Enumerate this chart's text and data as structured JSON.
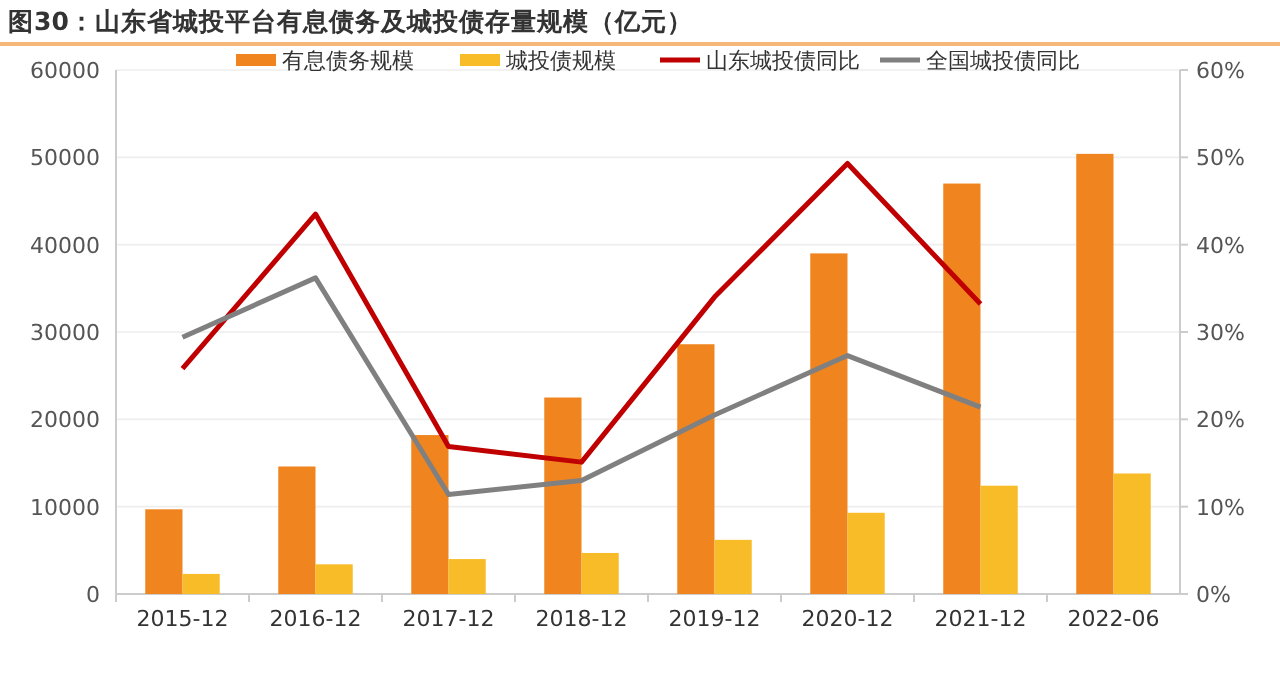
{
  "chart_data": {
    "type": "bar",
    "title": "图30：山东省城投平台有息债务及城投债存量规模（亿元）",
    "categories": [
      "2015-12",
      "2016-12",
      "2017-12",
      "2018-12",
      "2019-12",
      "2020-12",
      "2021-12",
      "2022-06"
    ],
    "series": [
      {
        "name": "有息债务规模",
        "color": "#f08520",
        "values": [
          9700,
          14600,
          18200,
          22500,
          28600,
          39000,
          47000,
          50400
        ]
      },
      {
        "name": "城投债规模",
        "color": "#f8bc28",
        "values": [
          2300,
          3400,
          4000,
          4700,
          6200,
          9300,
          12400,
          13800
        ]
      },
      {
        "name": "山东城投债同比",
        "type": "line",
        "axis": "y2",
        "color": "#c00000",
        "values": [
          25.8,
          43.5,
          16.9,
          15.1,
          34.0,
          49.3,
          33.2,
          null
        ]
      },
      {
        "name": "全国城投债同比",
        "type": "line",
        "axis": "y2",
        "color": "#808080",
        "values": [
          29.4,
          36.2,
          11.4,
          13.0,
          20.5,
          27.3,
          21.4,
          null
        ]
      }
    ],
    "ylim": [
      0,
      60000
    ],
    "yticks": [
      0,
      10000,
      20000,
      30000,
      40000,
      50000,
      60000
    ],
    "y2lim": [
      0,
      60
    ],
    "y2ticks": [
      {
        "value": 0,
        "label": "0%"
      },
      {
        "value": 10,
        "label": "10%"
      },
      {
        "value": 20,
        "label": "20%"
      },
      {
        "value": 30,
        "label": "30%"
      },
      {
        "value": 40,
        "label": "40%"
      },
      {
        "value": 50,
        "label": "50%"
      },
      {
        "value": 60,
        "label": "60%"
      }
    ],
    "grid": "y",
    "legend": "top",
    "marker": "none",
    "line_style": "solid"
  }
}
